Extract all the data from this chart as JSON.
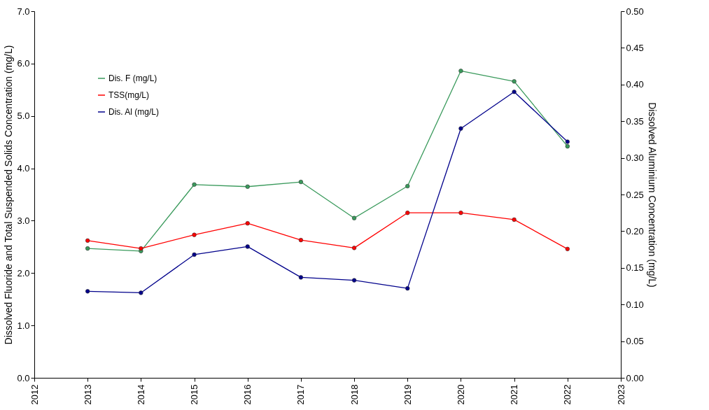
{
  "chart_data": {
    "type": "line",
    "ylabel": "Dissolved Fluoride and Total Suspended Solids Concentration  (mg/L)",
    "y2label": "Dissolved Aluminium Concentration  (mg/L)",
    "x": [
      2013,
      2014,
      2015,
      2016,
      2017,
      2018,
      2019,
      2020,
      2021,
      2022
    ],
    "xlim": [
      2012,
      2023
    ],
    "xticks": [
      2012,
      2013,
      2014,
      2015,
      2016,
      2017,
      2018,
      2019,
      2020,
      2021,
      2022,
      2023
    ],
    "ylim": [
      0,
      7
    ],
    "yticks": [
      {
        "value": 0,
        "label": "0.0"
      },
      {
        "value": 1,
        "label": "1.0"
      },
      {
        "value": 2,
        "label": "2.0"
      },
      {
        "value": 3,
        "label": "3.0"
      },
      {
        "value": 4,
        "label": "4.0"
      },
      {
        "value": 5,
        "label": "5.0"
      },
      {
        "value": 6,
        "label": "6.0"
      },
      {
        "value": 7,
        "label": "7.0"
      }
    ],
    "y2lim": [
      0,
      0.5
    ],
    "y2ticks": [
      {
        "value": 0,
        "label": "0.00"
      },
      {
        "value": 0.05,
        "label": "0.05"
      },
      {
        "value": 0.1,
        "label": "0.10"
      },
      {
        "value": 0.15,
        "label": "0.15"
      },
      {
        "value": 0.2,
        "label": "0.20"
      },
      {
        "value": 0.25,
        "label": "0.25"
      },
      {
        "value": 0.3,
        "label": "0.30"
      },
      {
        "value": 0.35,
        "label": "0.35"
      },
      {
        "value": 0.4,
        "label": "0.40"
      },
      {
        "value": 0.45,
        "label": "0.45"
      },
      {
        "value": 0.5,
        "label": "0.50"
      }
    ],
    "series": [
      {
        "name": "Dis. F (mg/L)",
        "color": "#3a9a5c",
        "values": [
          2.47,
          2.42,
          3.69,
          3.65,
          3.74,
          3.05,
          3.66,
          5.86,
          5.66,
          4.42
        ]
      },
      {
        "name": "TSS(mg/L)",
        "color": "#ff0000",
        "values": [
          2.62,
          2.47,
          2.73,
          2.95,
          2.63,
          2.48,
          3.15,
          3.15,
          3.02,
          2.46
        ]
      },
      {
        "name": "Dis. Al (mg/L)",
        "color": "#00008b",
        "axis": "y2",
        "values": [
          0.118,
          0.116,
          0.168,
          0.179,
          0.137,
          0.133,
          0.122,
          0.34,
          0.39,
          0.322
        ]
      }
    ],
    "marker": "circle",
    "line_style": "solid",
    "grid": false,
    "legend": "top left"
  }
}
